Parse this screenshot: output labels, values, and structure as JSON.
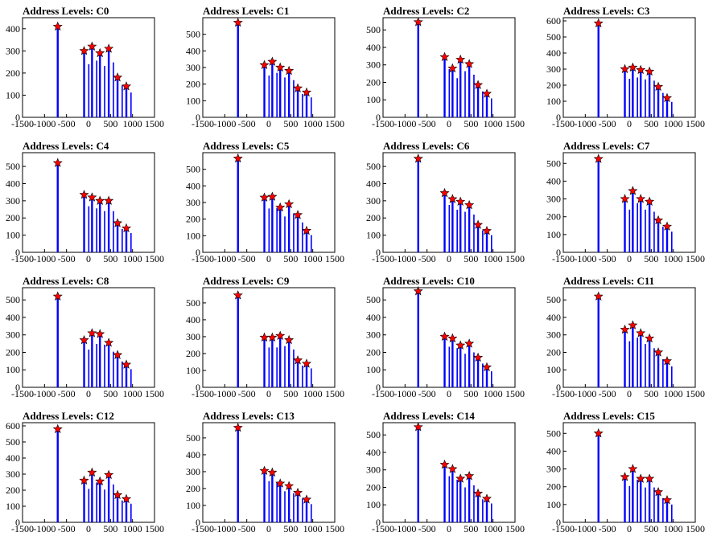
{
  "chart_data": {
    "type": "bar",
    "xlim": [
      -1500,
      1500
    ],
    "x_ticks": [
      -1500,
      -1000,
      -500,
      0,
      500,
      1000,
      1500
    ],
    "x_tick_labels": [
      "-1500",
      "-1000",
      "-500",
      "0",
      "500",
      "1000",
      "1500"
    ],
    "bar_color": "#0000ff",
    "marker_color": "#ff0000",
    "panels": [
      {
        "title": "Address Levels: C0",
        "ylim": [
          0,
          450
        ],
        "yticks": [
          0,
          100,
          200,
          300,
          400
        ],
        "peaks": [
          {
            "x": -700,
            "y": 410
          },
          {
            "x": -100,
            "y": 300
          },
          {
            "x": 80,
            "y": 320
          },
          {
            "x": 260,
            "y": 290
          },
          {
            "x": 460,
            "y": 310
          },
          {
            "x": 660,
            "y": 180
          },
          {
            "x": 860,
            "y": 140
          }
        ]
      },
      {
        "title": "Address Levels: C1",
        "ylim": [
          0,
          600
        ],
        "yticks": [
          0,
          100,
          200,
          300,
          400,
          500
        ],
        "peaks": [
          {
            "x": -700,
            "y": 570
          },
          {
            "x": -100,
            "y": 315
          },
          {
            "x": 80,
            "y": 335
          },
          {
            "x": 260,
            "y": 300
          },
          {
            "x": 460,
            "y": 280
          },
          {
            "x": 660,
            "y": 175
          },
          {
            "x": 860,
            "y": 150
          }
        ]
      },
      {
        "title": "Address Levels: C2",
        "ylim": [
          0,
          570
        ],
        "yticks": [
          0,
          100,
          200,
          300,
          400,
          500
        ],
        "peaks": [
          {
            "x": -700,
            "y": 545
          },
          {
            "x": -100,
            "y": 345
          },
          {
            "x": 80,
            "y": 280
          },
          {
            "x": 260,
            "y": 330
          },
          {
            "x": 460,
            "y": 305
          },
          {
            "x": 660,
            "y": 185
          },
          {
            "x": 860,
            "y": 135
          }
        ]
      },
      {
        "title": "Address Levels: C3",
        "ylim": [
          0,
          620
        ],
        "yticks": [
          0,
          100,
          200,
          300,
          400,
          500,
          600
        ],
        "peaks": [
          {
            "x": -700,
            "y": 585
          },
          {
            "x": -100,
            "y": 300
          },
          {
            "x": 80,
            "y": 310
          },
          {
            "x": 260,
            "y": 295
          },
          {
            "x": 460,
            "y": 285
          },
          {
            "x": 660,
            "y": 190
          },
          {
            "x": 860,
            "y": 120
          }
        ]
      },
      {
        "title": "Address Levels: C4",
        "ylim": [
          0,
          580
        ],
        "yticks": [
          0,
          100,
          200,
          300,
          400,
          500
        ],
        "peaks": [
          {
            "x": -700,
            "y": 520
          },
          {
            "x": -100,
            "y": 335
          },
          {
            "x": 80,
            "y": 320
          },
          {
            "x": 260,
            "y": 300
          },
          {
            "x": 460,
            "y": 300
          },
          {
            "x": 660,
            "y": 170
          },
          {
            "x": 860,
            "y": 140
          }
        ]
      },
      {
        "title": "Address Levels: C5",
        "ylim": [
          0,
          600
        ],
        "yticks": [
          0,
          100,
          200,
          300,
          400,
          500
        ],
        "peaks": [
          {
            "x": -700,
            "y": 565
          },
          {
            "x": -100,
            "y": 330
          },
          {
            "x": 80,
            "y": 335
          },
          {
            "x": 260,
            "y": 270
          },
          {
            "x": 460,
            "y": 290
          },
          {
            "x": 660,
            "y": 225
          },
          {
            "x": 860,
            "y": 130
          }
        ]
      },
      {
        "title": "Address Levels: C6",
        "ylim": [
          0,
          580
        ],
        "yticks": [
          0,
          100,
          200,
          300,
          400,
          500
        ],
        "peaks": [
          {
            "x": -700,
            "y": 545
          },
          {
            "x": -100,
            "y": 345
          },
          {
            "x": 80,
            "y": 310
          },
          {
            "x": 260,
            "y": 295
          },
          {
            "x": 460,
            "y": 275
          },
          {
            "x": 660,
            "y": 160
          },
          {
            "x": 860,
            "y": 125
          }
        ]
      },
      {
        "title": "Address Levels: C7",
        "ylim": [
          0,
          560
        ],
        "yticks": [
          0,
          100,
          200,
          300,
          400,
          500
        ],
        "peaks": [
          {
            "x": -700,
            "y": 525
          },
          {
            "x": -100,
            "y": 300
          },
          {
            "x": 80,
            "y": 345
          },
          {
            "x": 260,
            "y": 300
          },
          {
            "x": 460,
            "y": 285
          },
          {
            "x": 660,
            "y": 180
          },
          {
            "x": 860,
            "y": 145
          }
        ]
      },
      {
        "title": "Address Levels: C8",
        "ylim": [
          0,
          570
        ],
        "yticks": [
          0,
          100,
          200,
          300,
          400,
          500
        ],
        "peaks": [
          {
            "x": -700,
            "y": 520
          },
          {
            "x": -100,
            "y": 270
          },
          {
            "x": 80,
            "y": 310
          },
          {
            "x": 260,
            "y": 305
          },
          {
            "x": 460,
            "y": 255
          },
          {
            "x": 660,
            "y": 185
          },
          {
            "x": 860,
            "y": 130
          }
        ]
      },
      {
        "title": "Address Levels: C9",
        "ylim": [
          0,
          590
        ],
        "yticks": [
          0,
          100,
          200,
          300,
          400,
          500
        ],
        "peaks": [
          {
            "x": -700,
            "y": 545
          },
          {
            "x": -100,
            "y": 295
          },
          {
            "x": 80,
            "y": 295
          },
          {
            "x": 260,
            "y": 305
          },
          {
            "x": 460,
            "y": 280
          },
          {
            "x": 660,
            "y": 160
          },
          {
            "x": 860,
            "y": 140
          }
        ]
      },
      {
        "title": "Address Levels: C10",
        "ylim": [
          0,
          570
        ],
        "yticks": [
          0,
          100,
          200,
          300,
          400,
          500
        ],
        "peaks": [
          {
            "x": -700,
            "y": 550
          },
          {
            "x": -100,
            "y": 290
          },
          {
            "x": 80,
            "y": 280
          },
          {
            "x": 260,
            "y": 240
          },
          {
            "x": 460,
            "y": 250
          },
          {
            "x": 660,
            "y": 170
          },
          {
            "x": 860,
            "y": 115
          }
        ]
      },
      {
        "title": "Address Levels: C11",
        "ylim": [
          0,
          570
        ],
        "yticks": [
          0,
          100,
          200,
          300,
          400,
          500
        ],
        "peaks": [
          {
            "x": -700,
            "y": 520
          },
          {
            "x": -100,
            "y": 330
          },
          {
            "x": 80,
            "y": 355
          },
          {
            "x": 260,
            "y": 310
          },
          {
            "x": 460,
            "y": 280
          },
          {
            "x": 660,
            "y": 200
          },
          {
            "x": 860,
            "y": 150
          }
        ]
      },
      {
        "title": "Address Levels: C12",
        "ylim": [
          0,
          620
        ],
        "yticks": [
          0,
          100,
          200,
          300,
          400,
          500,
          600
        ],
        "peaks": [
          {
            "x": -700,
            "y": 580
          },
          {
            "x": -100,
            "y": 260
          },
          {
            "x": 80,
            "y": 310
          },
          {
            "x": 260,
            "y": 255
          },
          {
            "x": 460,
            "y": 295
          },
          {
            "x": 660,
            "y": 170
          },
          {
            "x": 860,
            "y": 145
          }
        ]
      },
      {
        "title": "Address Levels: C13",
        "ylim": [
          0,
          590
        ],
        "yticks": [
          0,
          100,
          200,
          300,
          400,
          500
        ],
        "peaks": [
          {
            "x": -700,
            "y": 560
          },
          {
            "x": -100,
            "y": 305
          },
          {
            "x": 80,
            "y": 295
          },
          {
            "x": 260,
            "y": 230
          },
          {
            "x": 460,
            "y": 215
          },
          {
            "x": 660,
            "y": 175
          },
          {
            "x": 860,
            "y": 135
          }
        ]
      },
      {
        "title": "Address Levels: C14",
        "ylim": [
          0,
          570
        ],
        "yticks": [
          0,
          100,
          200,
          300,
          400,
          500
        ],
        "peaks": [
          {
            "x": -700,
            "y": 545
          },
          {
            "x": -100,
            "y": 330
          },
          {
            "x": 80,
            "y": 305
          },
          {
            "x": 260,
            "y": 250
          },
          {
            "x": 460,
            "y": 265
          },
          {
            "x": 660,
            "y": 165
          },
          {
            "x": 860,
            "y": 135
          }
        ]
      },
      {
        "title": "Address Levels: C15",
        "ylim": [
          0,
          560
        ],
        "yticks": [
          0,
          100,
          200,
          300,
          400,
          500
        ],
        "peaks": [
          {
            "x": -700,
            "y": 500
          },
          {
            "x": -100,
            "y": 255
          },
          {
            "x": 80,
            "y": 300
          },
          {
            "x": 260,
            "y": 245
          },
          {
            "x": 460,
            "y": 245
          },
          {
            "x": 660,
            "y": 170
          },
          {
            "x": 860,
            "y": 125
          }
        ]
      }
    ]
  }
}
